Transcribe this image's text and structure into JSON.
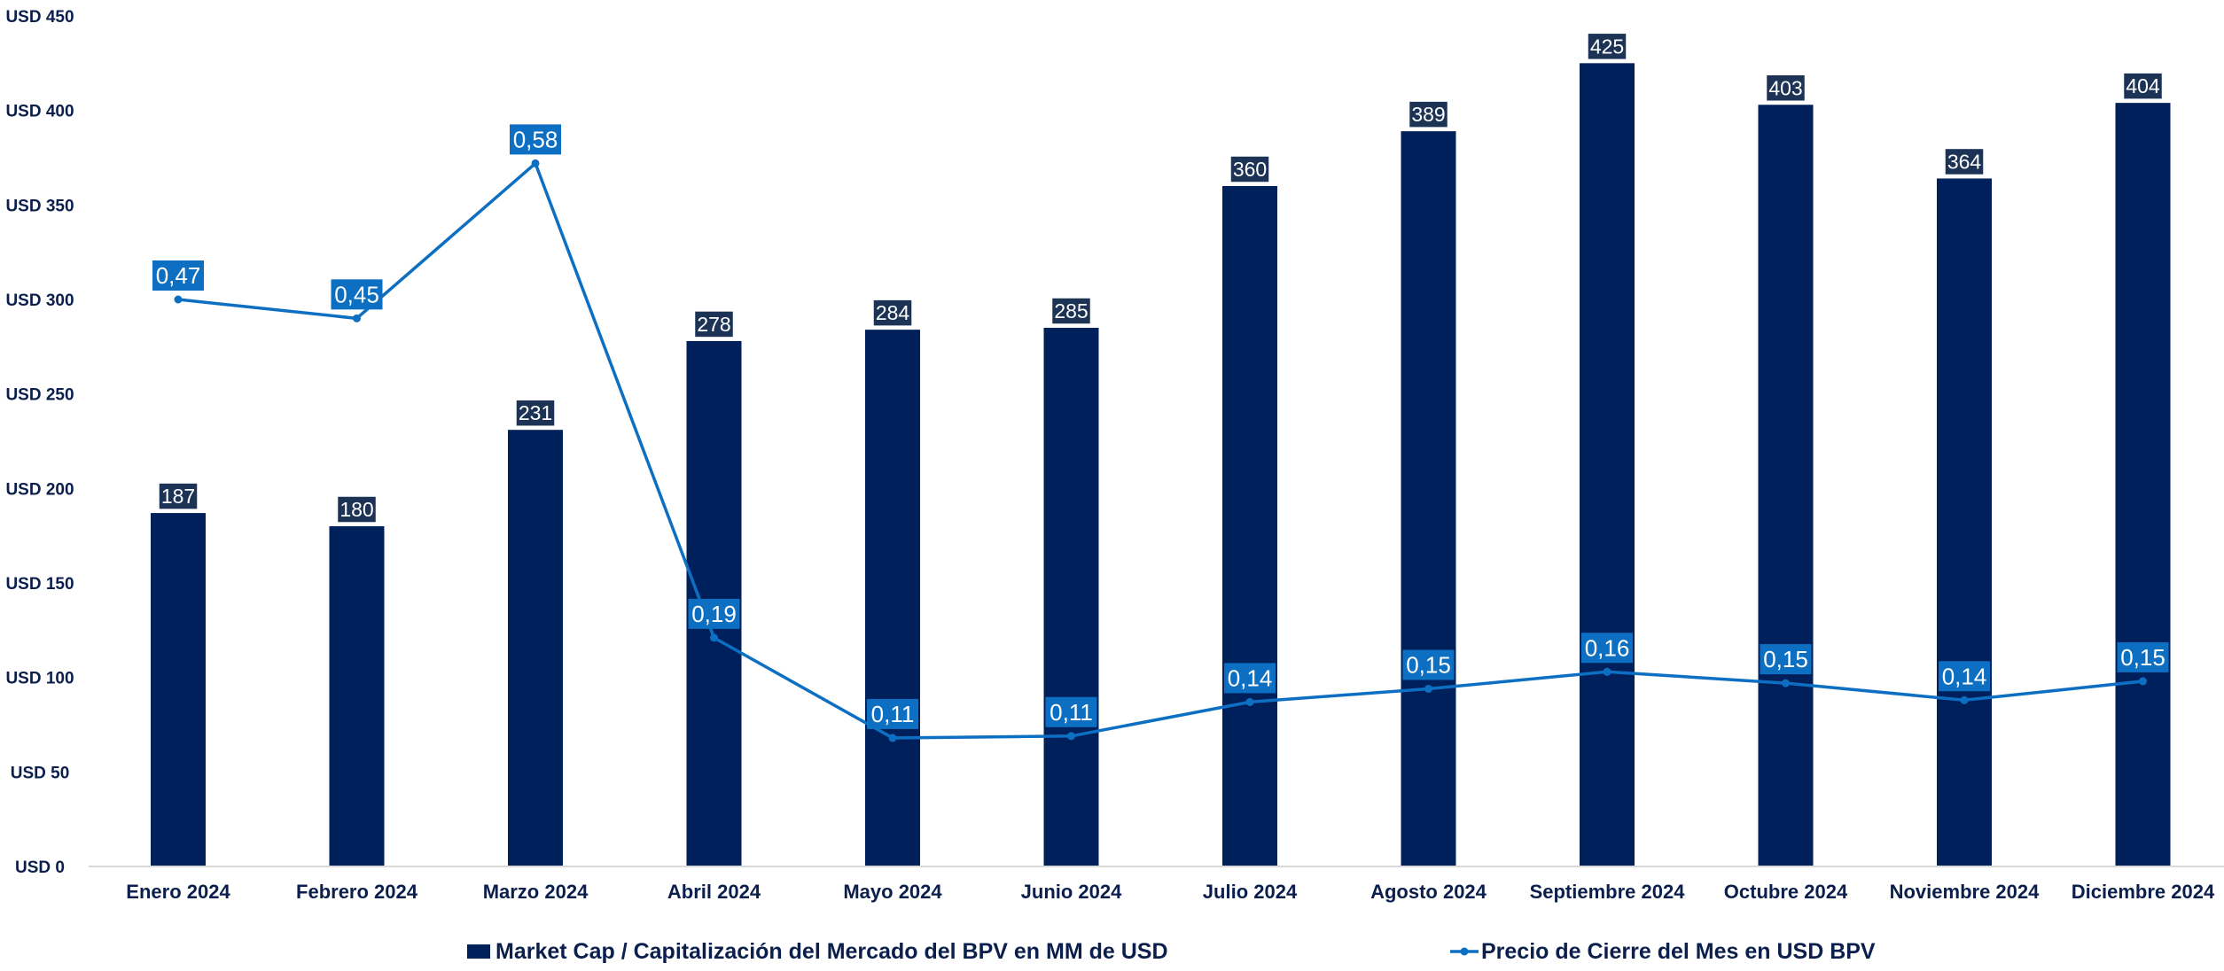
{
  "chart_data": {
    "type": "bar",
    "categories": [
      "Enero 2024",
      "Febrero 2024",
      "Marzo 2024",
      "Abril 2024",
      "Mayo 2024",
      "Junio 2024",
      "Julio 2024",
      "Agosto 2024",
      "Septiembre 2024",
      "Octubre 2024",
      "Noviembre 2024",
      "Diciembre 2024"
    ],
    "series": [
      {
        "name": "Market Cap / Capitalización del Mercado del BPV en MM de USD",
        "type": "bar",
        "color": "#00205b",
        "values": [
          187,
          180,
          231,
          278,
          284,
          285,
          360,
          389,
          425,
          403,
          364,
          404
        ],
        "labels": [
          "187",
          "180",
          "231",
          "278",
          "284",
          "285",
          "360",
          "389",
          "425",
          "403",
          "364",
          "404"
        ]
      },
      {
        "name": "Precio de Cierre del Mes en USD BPV",
        "type": "line",
        "color": "#0d6fc2",
        "values": [
          0.47,
          0.45,
          0.58,
          0.19,
          0.11,
          0.11,
          0.14,
          0.15,
          0.16,
          0.15,
          0.14,
          0.15
        ],
        "labels": [
          "0,47",
          "0,45",
          "0,58",
          "0,19",
          "0,11",
          "0,11",
          "0,14",
          "0,15",
          "0,16",
          "0,15",
          "0,14",
          "0,15"
        ],
        "plotted_on_primary_axis": [
          300,
          290,
          372,
          121,
          68,
          69,
          87,
          94,
          103,
          97,
          88,
          98
        ]
      }
    ],
    "yaxis": {
      "ticks": [
        0,
        50,
        100,
        150,
        200,
        250,
        300,
        350,
        400,
        450
      ],
      "tick_labels": [
        "USD 0",
        "USD 50",
        "USD 100",
        "USD 150",
        "USD 200",
        "USD 250",
        "USD 300",
        "USD 350",
        "USD 400",
        "USD 450"
      ],
      "ylim": [
        0,
        450
      ]
    },
    "title": "",
    "xlabel": "",
    "ylabel": "",
    "grid": false,
    "legend_position": "bottom"
  }
}
